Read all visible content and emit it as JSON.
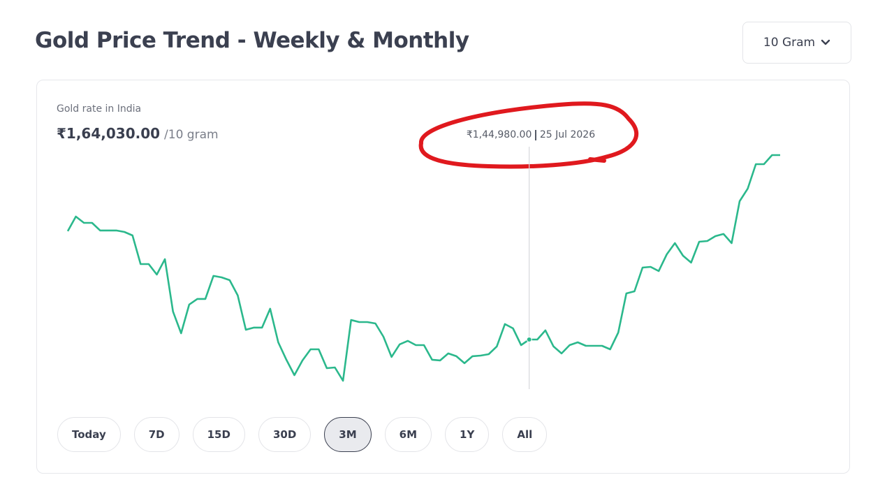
{
  "header": {
    "title": "Gold Price Trend - Weekly & Monthly",
    "unit_select": "10 Gram"
  },
  "card": {
    "label": "Gold rate in India",
    "current_price": "₹1,64,030.00",
    "unit": "/10 gram"
  },
  "chart_data": {
    "type": "line",
    "color": "#2bb88c",
    "values": [
      156170,
      157680,
      157030,
      157030,
      156240,
      156240,
      156240,
      156090,
      155730,
      152770,
      152770,
      151690,
      153280,
      147870,
      145630,
      148590,
      149170,
      149170,
      151550,
      151400,
      151110,
      149530,
      145990,
      146210,
      146210,
      148160,
      144690,
      142890,
      141300,
      142820,
      143970,
      143970,
      142020,
      142090,
      140720,
      147000,
      146780,
      146780,
      146640,
      145270,
      143180,
      144480,
      144840,
      144400,
      144400,
      142890,
      142820,
      143540,
      143250,
      142530,
      143250,
      143320,
      143460,
      144260,
      146570,
      146130,
      144400,
      144980,
      144980,
      145920,
      144260,
      143540,
      144400,
      144690,
      144330,
      144330,
      144330,
      143970,
      145700,
      149740,
      149960,
      152410,
      152480,
      152050,
      153780,
      154940,
      153640,
      152920,
      155080,
      155150,
      155660,
      155880,
      154940,
      159270,
      160570,
      163090,
      163090,
      164030,
      164030
    ],
    "categories": [
      null,
      null,
      null,
      null,
      null,
      null,
      null,
      null,
      null,
      null,
      null,
      null,
      null,
      null,
      null,
      null,
      null,
      null,
      null,
      null,
      null,
      null,
      null,
      null,
      null,
      null,
      null,
      null,
      null,
      null,
      null,
      null,
      null,
      null,
      null,
      null,
      null,
      null,
      null,
      null,
      null,
      null,
      null,
      null,
      null,
      null,
      null,
      null,
      null,
      null,
      null,
      null,
      null,
      null,
      null,
      null,
      null,
      "25 Jul 2026",
      null,
      null,
      null,
      null,
      null,
      null,
      null,
      null,
      null,
      null,
      null,
      null,
      null,
      null,
      null,
      null,
      null,
      null,
      null,
      null,
      null,
      null,
      null,
      null,
      null,
      null,
      null,
      null,
      null,
      null,
      null
    ],
    "value_labels": [
      null,
      null,
      null,
      null,
      null,
      null,
      null,
      null,
      null,
      null,
      null,
      null,
      null,
      null,
      null,
      null,
      null,
      null,
      null,
      null,
      null,
      null,
      null,
      null,
      null,
      null,
      null,
      null,
      null,
      null,
      null,
      null,
      null,
      null,
      null,
      null,
      null,
      null,
      null,
      null,
      null,
      null,
      null,
      null,
      null,
      null,
      null,
      null,
      null,
      null,
      null,
      null,
      null,
      null,
      null,
      null,
      null,
      "₹1,44,980.00",
      null,
      null,
      null,
      null,
      null,
      null,
      null,
      null,
      null,
      null,
      null,
      null,
      null,
      null,
      null,
      null,
      null,
      null,
      null,
      null,
      null,
      null,
      null,
      null,
      null,
      null,
      null,
      null,
      null,
      null,
      null
    ]
  },
  "ranges": [
    "Today",
    "7D",
    "15D",
    "30D",
    "3M",
    "6M",
    "1Y",
    "All"
  ],
  "selected_range": "3M"
}
